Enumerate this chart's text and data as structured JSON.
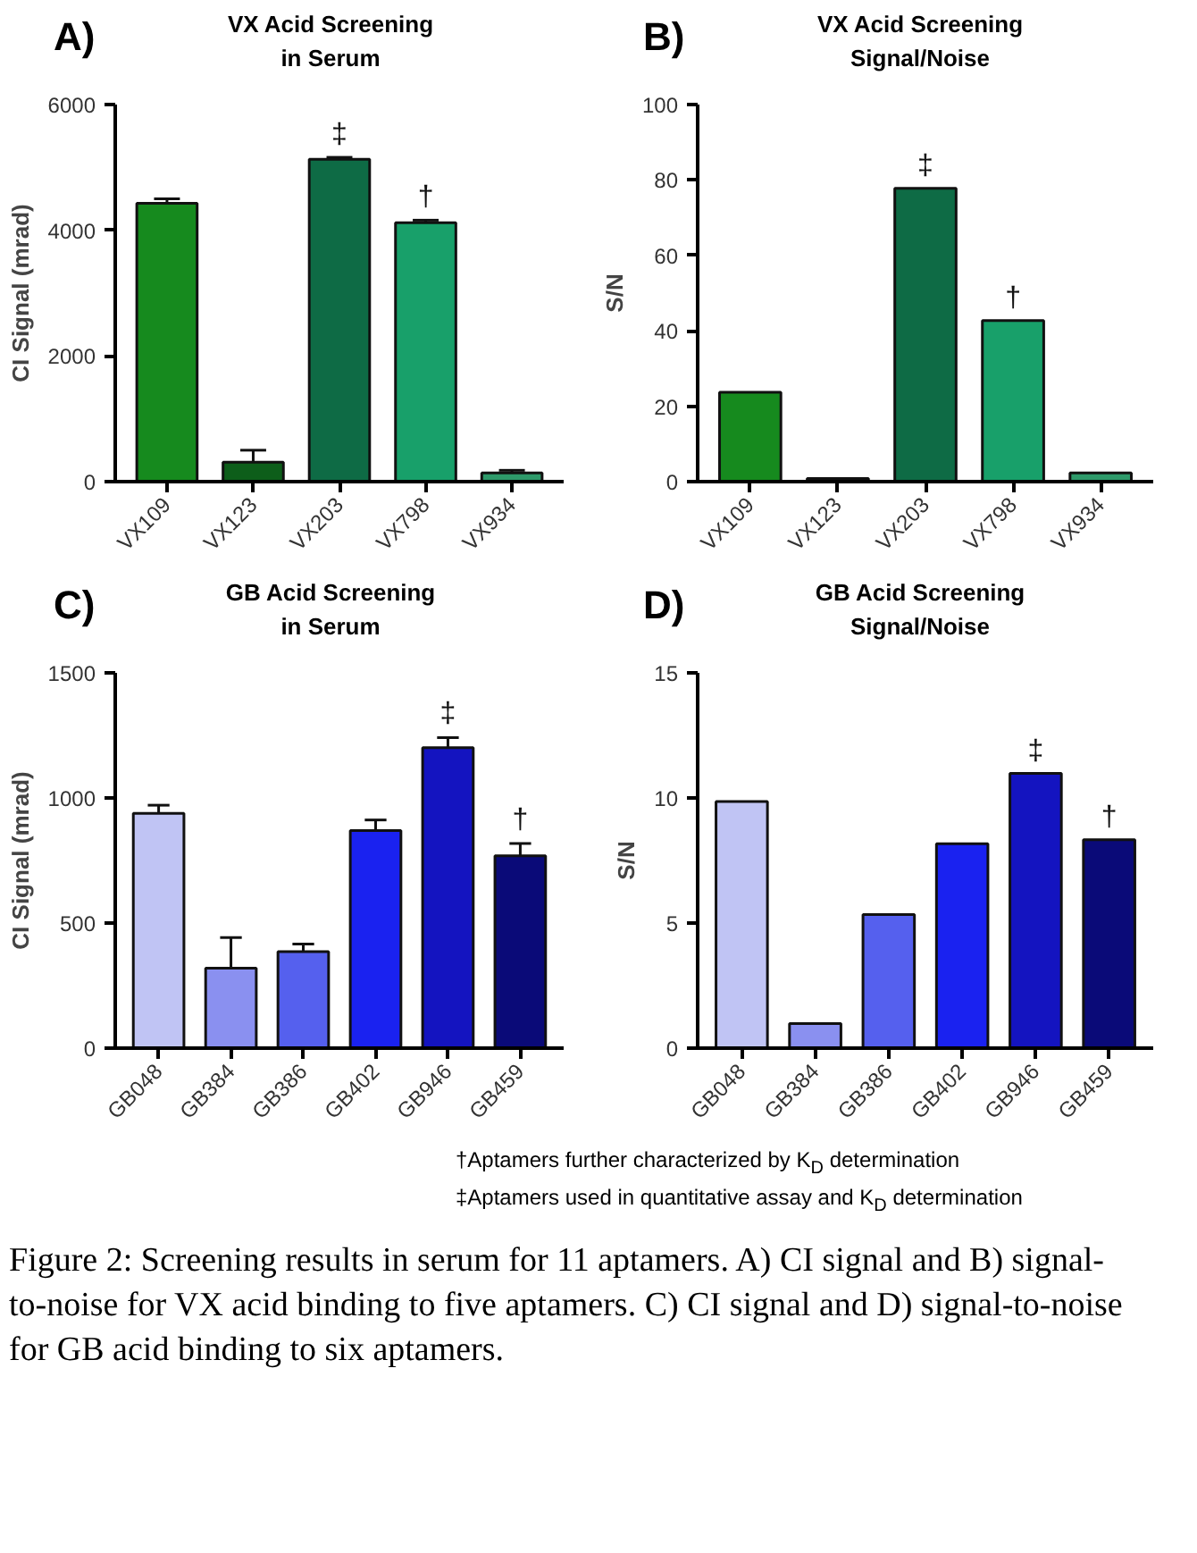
{
  "chart_data": [
    {
      "type": "bar",
      "title": "VX Acid Screening\nin Serum",
      "ylabel": "CI Signal (mrad)",
      "categories": [
        "VX109",
        "VX123",
        "VX203",
        "VX798",
        "VX934"
      ],
      "values": [
        4430,
        310,
        5130,
        4120,
        140
      ],
      "errors": [
        70,
        190,
        30,
        40,
        40
      ],
      "colors": [
        "#168a1e",
        "#0d5e1a",
        "#0e6b45",
        "#18a06a",
        "#2e9a6a"
      ],
      "ylim": [
        0,
        6000
      ],
      "yticks": [
        0,
        2000,
        4000,
        6000
      ],
      "annotations": [
        "A)",
        {
          "text": "‡",
          "x": "VX203",
          "y": 5130
        },
        {
          "text": "†",
          "x": "VX798",
          "y": 4120
        }
      ]
    },
    {
      "type": "bar",
      "title": "VX Acid Screening\nSignal/Noise",
      "ylabel": "S/N",
      "categories": [
        "VX109",
        "VX123",
        "VX203",
        "VX798",
        "VX934"
      ],
      "values": [
        23.7,
        0.8,
        77.8,
        42.7,
        2.3
      ],
      "colors": [
        "#168a1e",
        "#0d5e1a",
        "#0e6b45",
        "#18a06a",
        "#2e9a6a"
      ],
      "ylim": [
        0,
        100
      ],
      "yticks": [
        0,
        20,
        40,
        60,
        80,
        100
      ],
      "annotations": [
        "B)",
        {
          "text": "‡",
          "x": "VX203",
          "y": 77.8
        },
        {
          "text": "†",
          "x": "VX798",
          "y": 42.7
        }
      ]
    },
    {
      "type": "bar",
      "title": "GB Acid Screening\nin Serum",
      "ylabel": "CI Signal (mrad)",
      "categories": [
        "GB048",
        "GB384",
        "GB386",
        "GB402",
        "GB946",
        "GB459"
      ],
      "values": [
        938,
        320,
        386,
        870,
        1201,
        769
      ],
      "errors": [
        33,
        122,
        30,
        42,
        40,
        49
      ],
      "colors": [
        "#c0c4f4",
        "#8a90f0",
        "#5560ee",
        "#1a22f0",
        "#1414c0",
        "#0a0a78"
      ],
      "ylim": [
        0,
        1500
      ],
      "yticks": [
        0,
        500,
        1000,
        1500
      ],
      "annotations": [
        "C)",
        {
          "text": "‡",
          "x": "GB946",
          "y": 1201
        },
        {
          "text": "†",
          "x": "GB459",
          "y": 769
        }
      ]
    },
    {
      "type": "bar",
      "title": "GB Acid Screening\nSignal/Noise",
      "ylabel": "S/N",
      "categories": [
        "GB048",
        "GB384",
        "GB386",
        "GB402",
        "GB946",
        "GB459"
      ],
      "values": [
        9.86,
        0.98,
        5.34,
        8.17,
        10.98,
        8.33
      ],
      "colors": [
        "#c0c4f4",
        "#8a90f0",
        "#5560ee",
        "#1a22f0",
        "#1414c0",
        "#0a0a78"
      ],
      "ylim": [
        0,
        15
      ],
      "yticks": [
        0,
        5,
        10,
        15
      ],
      "annotations": [
        "D)",
        {
          "text": "‡",
          "x": "GB946",
          "y": 10.98
        },
        {
          "text": "†",
          "x": "GB459",
          "y": 8.33
        }
      ]
    },
    {
      "type": "other",
      "annotations": [
        "†Aptamers further characterized by K$_{D}$ determination",
        "‡Aptamers used in quantitative assay and K$_{D}$ determination",
        "Figure 2: Screening results in serum for 11 aptamers. A) CI signal and B) signal-to-noise for VX acid binding to five aptamers.  C) CI signal and D) signal-to-noise for GB acid binding to six aptamers."
      ]
    }
  ]
}
